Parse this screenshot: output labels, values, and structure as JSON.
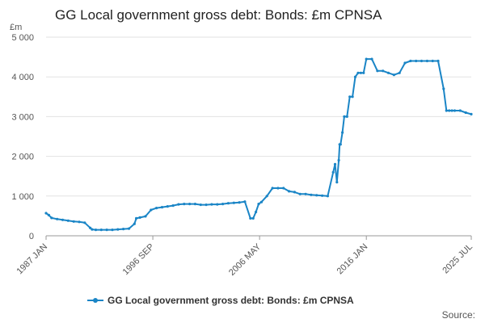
{
  "chart_data": {
    "type": "line",
    "title": "GG Local government gross debt: Bonds: £m CPNSA",
    "ylabel_unit": "£m",
    "ylim": [
      0,
      5000
    ],
    "y_ticks": [
      "0",
      "1 000",
      "2 000",
      "3 000",
      "4 000",
      "5 000"
    ],
    "y_tick_values": [
      0,
      1000,
      2000,
      3000,
      4000,
      5000
    ],
    "x_range": [
      "1987 JAN",
      "2025 JUL"
    ],
    "x_tick_labels": [
      "1987 JAN",
      "1996 SEP",
      "2006 MAY",
      "2016 JAN",
      "2025 JUL"
    ],
    "x_tick_values": [
      "1987-01",
      "1996-09",
      "2006-05",
      "2016-01",
      "2025-07"
    ],
    "grid": true,
    "legend_position": "bottom",
    "series": [
      {
        "name": "GG Local government gross debt: Bonds: £m CPNSA",
        "color": "#1a85c6",
        "x": [
          "1987-01",
          "1987-04",
          "1987-07",
          "1988-01",
          "1988-07",
          "1989-01",
          "1989-07",
          "1990-01",
          "1990-07",
          "1991-01",
          "1991-03",
          "1991-07",
          "1992-01",
          "1992-07",
          "1993-01",
          "1993-07",
          "1994-01",
          "1994-07",
          "1995-01",
          "1995-03",
          "1995-07",
          "1996-01",
          "1996-07",
          "1997-01",
          "1997-07",
          "1998-01",
          "1998-07",
          "1999-01",
          "1999-07",
          "2000-01",
          "2000-07",
          "2001-01",
          "2001-07",
          "2002-01",
          "2002-07",
          "2003-01",
          "2003-07",
          "2004-01",
          "2004-07",
          "2005-01",
          "2005-07",
          "2005-10",
          "2006-01",
          "2006-04",
          "2006-07",
          "2007-01",
          "2007-07",
          "2008-01",
          "2008-07",
          "2009-01",
          "2009-07",
          "2010-01",
          "2010-07",
          "2011-01",
          "2011-07",
          "2012-01",
          "2012-07",
          "2013-01",
          "2013-03",
          "2013-05",
          "2013-07",
          "2013-08",
          "2013-09",
          "2013-11",
          "2014-01",
          "2014-04",
          "2014-07",
          "2014-10",
          "2015-01",
          "2015-04",
          "2015-07",
          "2015-10",
          "2016-01",
          "2016-07",
          "2017-01",
          "2017-07",
          "2018-01",
          "2018-07",
          "2019-01",
          "2019-07",
          "2020-01",
          "2020-07",
          "2021-01",
          "2021-07",
          "2022-01",
          "2022-07",
          "2023-01",
          "2023-04",
          "2023-07",
          "2023-10",
          "2024-01",
          "2024-07",
          "2025-01",
          "2025-07"
        ],
        "y": [
          570,
          520,
          450,
          420,
          400,
          380,
          360,
          350,
          330,
          200,
          160,
          150,
          150,
          150,
          150,
          160,
          170,
          180,
          300,
          440,
          460,
          490,
          650,
          700,
          720,
          740,
          760,
          790,
          800,
          800,
          800,
          780,
          780,
          790,
          790,
          800,
          820,
          830,
          840,
          860,
          440,
          440,
          600,
          800,
          850,
          1000,
          1200,
          1200,
          1200,
          1120,
          1100,
          1050,
          1050,
          1030,
          1020,
          1010,
          1000,
          1600,
          1800,
          1350,
          1900,
          2300,
          2300,
          2600,
          3000,
          3000,
          3500,
          3500,
          4000,
          4100,
          4100,
          4100,
          4450,
          4450,
          4150,
          4150,
          4100,
          4050,
          4100,
          4350,
          4400,
          4400,
          4400,
          4400,
          4400,
          4400,
          3700,
          3150,
          3150,
          3150,
          3150,
          3150,
          3100,
          3060
        ]
      }
    ],
    "source_label": "Source:"
  }
}
